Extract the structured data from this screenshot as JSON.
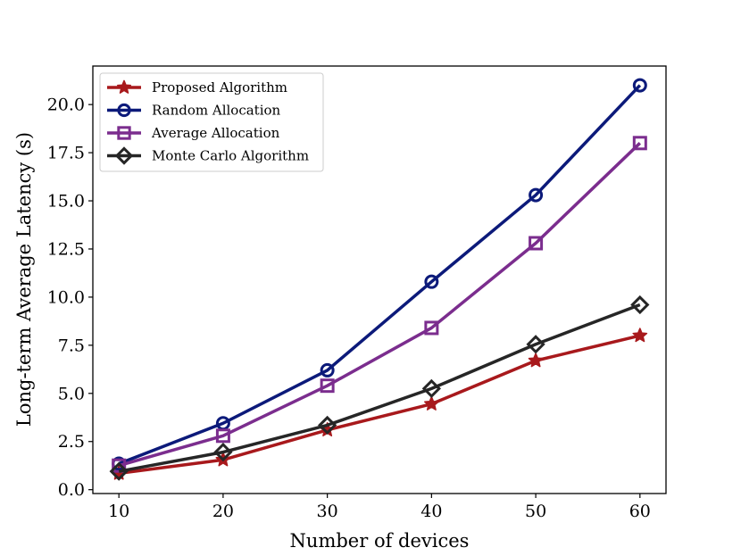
{
  "chart_data": {
    "type": "line",
    "title": "",
    "xlabel": "Number of devices",
    "ylabel": "Long-term Average Latency (s)",
    "x": [
      10,
      20,
      30,
      40,
      50,
      60
    ],
    "xlim": [
      7.5,
      62.5
    ],
    "ylim": [
      -0.2,
      22.0
    ],
    "xticks": [
      10,
      20,
      30,
      40,
      50,
      60
    ],
    "xtick_labels": [
      "10",
      "20",
      "30",
      "40",
      "50",
      "60"
    ],
    "yticks": [
      0,
      2.5,
      5,
      7.5,
      10,
      12.5,
      15,
      17.5,
      20
    ],
    "ytick_labels": [
      "0.0",
      "2.5",
      "5.0",
      "7.5",
      "10.0",
      "12.5",
      "15.0",
      "17.5",
      "20.0"
    ],
    "grid": false,
    "legend_position": "top-left",
    "series": [
      {
        "name": "Proposed Algorithm",
        "color": "#a8191c",
        "marker": "star",
        "values": [
          0.85,
          1.55,
          3.1,
          4.45,
          6.7,
          8.0
        ]
      },
      {
        "name": "Random Allocation",
        "color": "#0c1a7a",
        "marker": "circle",
        "values": [
          1.35,
          3.45,
          6.2,
          10.8,
          15.3,
          21.0
        ]
      },
      {
        "name": "Average Allocation",
        "color": "#7b2d8e",
        "marker": "square",
        "values": [
          1.25,
          2.8,
          5.4,
          8.4,
          12.8,
          18.0
        ]
      },
      {
        "name": "Monte Carlo Algorithm",
        "color": "#262626",
        "marker": "diamond",
        "values": [
          0.95,
          1.95,
          3.35,
          5.25,
          7.55,
          9.6
        ]
      }
    ]
  }
}
